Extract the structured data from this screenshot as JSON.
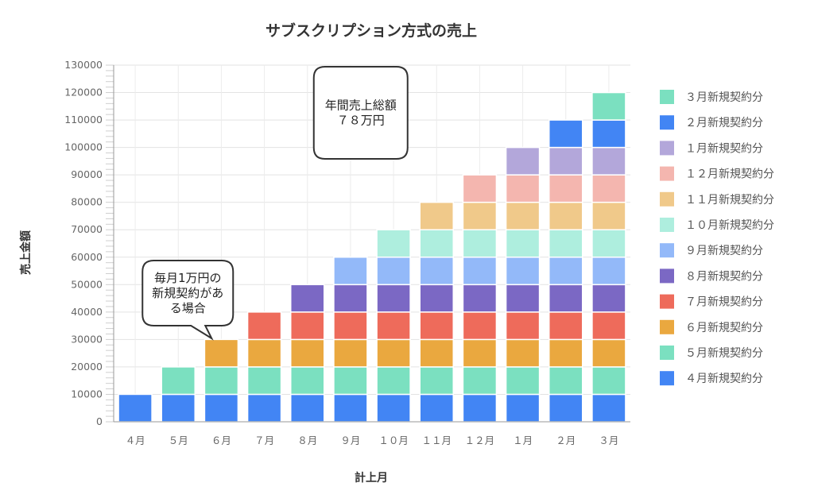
{
  "chart_data": {
    "type": "bar",
    "stacked": true,
    "title": "サブスクリプション方式の売上",
    "xlabel": "計上月",
    "ylabel": "売上金額",
    "ylim": [
      0,
      130000
    ],
    "ytick_step": 10000,
    "grid": true,
    "legend_position": "right",
    "categories": [
      "４月",
      "５月",
      "６月",
      "７月",
      "８月",
      "９月",
      "１０月",
      "１１月",
      "１２月",
      "１月",
      "２月",
      "３月"
    ],
    "series": [
      {
        "name": "４月新規契約分",
        "color": "#4285f4",
        "values": [
          10000,
          10000,
          10000,
          10000,
          10000,
          10000,
          10000,
          10000,
          10000,
          10000,
          10000,
          10000
        ]
      },
      {
        "name": "５月新規契約分",
        "color": "#7be0c0",
        "values": [
          0,
          10000,
          10000,
          10000,
          10000,
          10000,
          10000,
          10000,
          10000,
          10000,
          10000,
          10000
        ]
      },
      {
        "name": "６月新規契約分",
        "color": "#eaa83f",
        "values": [
          0,
          0,
          10000,
          10000,
          10000,
          10000,
          10000,
          10000,
          10000,
          10000,
          10000,
          10000
        ]
      },
      {
        "name": "７月新規契約分",
        "color": "#ee6b5b",
        "values": [
          0,
          0,
          0,
          10000,
          10000,
          10000,
          10000,
          10000,
          10000,
          10000,
          10000,
          10000
        ]
      },
      {
        "name": "８月新規契約分",
        "color": "#7b68c4",
        "values": [
          0,
          0,
          0,
          0,
          10000,
          10000,
          10000,
          10000,
          10000,
          10000,
          10000,
          10000
        ]
      },
      {
        "name": "９月新規契約分",
        "color": "#93b9f9",
        "values": [
          0,
          0,
          0,
          0,
          0,
          10000,
          10000,
          10000,
          10000,
          10000,
          10000,
          10000
        ]
      },
      {
        "name": "１０月新規契約分",
        "color": "#aeeede",
        "values": [
          0,
          0,
          0,
          0,
          0,
          0,
          10000,
          10000,
          10000,
          10000,
          10000,
          10000
        ]
      },
      {
        "name": "１１月新規契約分",
        "color": "#f0c98a",
        "values": [
          0,
          0,
          0,
          0,
          0,
          0,
          0,
          10000,
          10000,
          10000,
          10000,
          10000
        ]
      },
      {
        "name": "１２月新規契約分",
        "color": "#f4b6af",
        "values": [
          0,
          0,
          0,
          0,
          0,
          0,
          0,
          0,
          10000,
          10000,
          10000,
          10000
        ]
      },
      {
        "name": "１月新規契約分",
        "color": "#b3a7da",
        "values": [
          0,
          0,
          0,
          0,
          0,
          0,
          0,
          0,
          0,
          10000,
          10000,
          10000
        ]
      },
      {
        "name": "２月新規契約分",
        "color": "#4285f4",
        "values": [
          0,
          0,
          0,
          0,
          0,
          0,
          0,
          0,
          0,
          0,
          10000,
          10000
        ]
      },
      {
        "name": "３月新規契約分",
        "color": "#7be0c0",
        "values": [
          0,
          0,
          0,
          0,
          0,
          0,
          0,
          0,
          0,
          0,
          0,
          10000
        ]
      }
    ],
    "annotations": [
      {
        "id": "total",
        "lines": [
          "年間売上総額",
          "７８万円"
        ],
        "category_index": 5,
        "value": 105000
      },
      {
        "id": "monthly",
        "lines": [
          "毎月1万円の",
          "新規契約があ",
          "る場合"
        ],
        "category_index": 1,
        "value": 40000
      }
    ]
  }
}
